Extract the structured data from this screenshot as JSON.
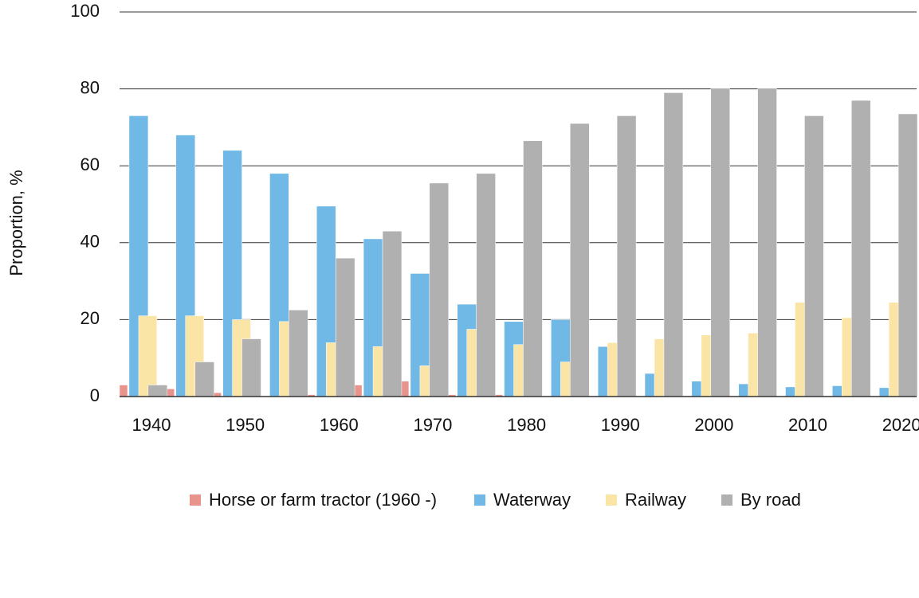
{
  "chart_data": {
    "type": "bar",
    "y_label": "Proportion, %",
    "categories": [
      "1940",
      null,
      "1950",
      null,
      "1960",
      null,
      "1970",
      null,
      "1980",
      null,
      "1990",
      null,
      "2000",
      null,
      "2010",
      null,
      "2020"
    ],
    "series": [
      {
        "name": "Horse or farm tractor (1960 -)",
        "color": "#e8938c",
        "values": [
          3,
          2,
          1,
          0,
          0.5,
          3,
          4,
          0.5,
          0.5,
          null,
          null,
          null,
          null,
          null,
          null,
          null,
          null
        ]
      },
      {
        "name": "Waterway",
        "color": "#70b8e6",
        "values": [
          73,
          68,
          64,
          58,
          49.5,
          41,
          32,
          24,
          19.5,
          20,
          13,
          6,
          4,
          3.3,
          2.5,
          2.8,
          2.3
        ]
      },
      {
        "name": "Railway",
        "color": "#fbe5a6",
        "values": [
          21,
          21,
          20,
          19.5,
          14,
          13,
          8,
          17.5,
          13.5,
          9,
          14,
          15,
          16,
          16.5,
          24.5,
          20.5,
          24.5
        ]
      },
      {
        "name": "By road",
        "color": "#b0b0b0",
        "values": [
          3,
          9,
          15,
          22.5,
          36,
          43,
          55.5,
          58,
          66.5,
          71,
          73,
          79,
          80,
          80,
          73,
          77,
          73.5
        ]
      }
    ],
    "ylim": [
      0,
      100
    ],
    "yticks": [
      0,
      20,
      40,
      60,
      80,
      100
    ],
    "grid": true
  }
}
